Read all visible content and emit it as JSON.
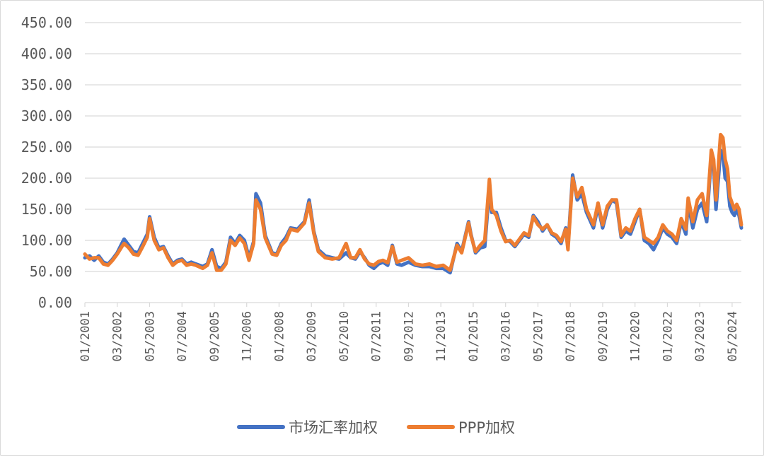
{
  "chart_data": {
    "type": "line",
    "title": "",
    "xlabel": "",
    "ylabel": "",
    "ylim": [
      0,
      450
    ],
    "yticks": [
      "0.00",
      "50.00",
      "100.00",
      "150.00",
      "200.00",
      "250.00",
      "300.00",
      "350.00",
      "400.00",
      "450.00"
    ],
    "xticks": [
      "01/2001",
      "03/2002",
      "05/2003",
      "07/2004",
      "09/2005",
      "11/2006",
      "01/2008",
      "03/2009",
      "05/2010",
      "07/2011",
      "09/2012",
      "11/2013",
      "01/2015",
      "03/2016",
      "05/2017",
      "07/2018",
      "09/2019",
      "11/2020",
      "01/2022",
      "03/2023",
      "05/2024"
    ],
    "grid": true,
    "legend": "bottom",
    "x_start": "01/2001",
    "x_end": "09/2024",
    "colors": {
      "market": "#4472C4",
      "ppp": "#ED7D31",
      "grid": "#d9d9d9",
      "text": "#595959"
    },
    "series": [
      {
        "name": "市场汇率加权",
        "color": "#4472C4",
        "points": [
          [
            "01/2001",
            72
          ],
          [
            "03/2001",
            75
          ],
          [
            "05/2001",
            68
          ],
          [
            "07/2001",
            75
          ],
          [
            "09/2001",
            65
          ],
          [
            "11/2001",
            62
          ],
          [
            "01/2002",
            70
          ],
          [
            "03/2002",
            80
          ],
          [
            "05/2002",
            95
          ],
          [
            "06/2002",
            102
          ],
          [
            "08/2002",
            92
          ],
          [
            "10/2002",
            82
          ],
          [
            "12/2002",
            80
          ],
          [
            "02/2003",
            95
          ],
          [
            "04/2003",
            110
          ],
          [
            "05/2003",
            138
          ],
          [
            "07/2003",
            105
          ],
          [
            "09/2003",
            88
          ],
          [
            "11/2003",
            90
          ],
          [
            "01/2004",
            75
          ],
          [
            "03/2004",
            62
          ],
          [
            "05/2004",
            68
          ],
          [
            "07/2004",
            70
          ],
          [
            "09/2004",
            62
          ],
          [
            "11/2004",
            65
          ],
          [
            "01/2005",
            62
          ],
          [
            "04/2005",
            58
          ],
          [
            "06/2005",
            62
          ],
          [
            "08/2005",
            85
          ],
          [
            "10/2005",
            58
          ],
          [
            "12/2005",
            55
          ],
          [
            "02/2006",
            65
          ],
          [
            "04/2006",
            105
          ],
          [
            "06/2006",
            95
          ],
          [
            "08/2006",
            108
          ],
          [
            "10/2006",
            100
          ],
          [
            "12/2006",
            72
          ],
          [
            "02/2007",
            98
          ],
          [
            "03/2007",
            175
          ],
          [
            "05/2007",
            160
          ],
          [
            "07/2007",
            108
          ],
          [
            "10/2007",
            80
          ],
          [
            "12/2007",
            78
          ],
          [
            "02/2008",
            95
          ],
          [
            "04/2008",
            105
          ],
          [
            "06/2008",
            120
          ],
          [
            "09/2008",
            118
          ],
          [
            "12/2008",
            130
          ],
          [
            "02/2009",
            165
          ],
          [
            "04/2009",
            115
          ],
          [
            "06/2009",
            85
          ],
          [
            "09/2009",
            75
          ],
          [
            "12/2009",
            72
          ],
          [
            "03/2010",
            70
          ],
          [
            "06/2010",
            80
          ],
          [
            "08/2010",
            72
          ],
          [
            "10/2010",
            70
          ],
          [
            "12/2010",
            82
          ],
          [
            "02/2011",
            72
          ],
          [
            "04/2011",
            60
          ],
          [
            "06/2011",
            55
          ],
          [
            "08/2011",
            62
          ],
          [
            "10/2011",
            65
          ],
          [
            "12/2011",
            60
          ],
          [
            "02/2012",
            92
          ],
          [
            "04/2012",
            62
          ],
          [
            "06/2012",
            60
          ],
          [
            "09/2012",
            65
          ],
          [
            "12/2012",
            60
          ],
          [
            "03/2013",
            58
          ],
          [
            "06/2013",
            58
          ],
          [
            "09/2013",
            55
          ],
          [
            "12/2013",
            55
          ],
          [
            "03/2014",
            48
          ],
          [
            "06/2014",
            95
          ],
          [
            "08/2014",
            82
          ],
          [
            "11/2014",
            130
          ],
          [
            "12/2014",
            110
          ],
          [
            "02/2015",
            80
          ],
          [
            "04/2015",
            88
          ],
          [
            "06/2015",
            90
          ],
          [
            "08/2015",
            185
          ],
          [
            "09/2015",
            145
          ],
          [
            "11/2015",
            145
          ],
          [
            "01/2016",
            120
          ],
          [
            "03/2016",
            100
          ],
          [
            "05/2016",
            98
          ],
          [
            "07/2016",
            90
          ],
          [
            "09/2016",
            100
          ],
          [
            "11/2016",
            110
          ],
          [
            "01/2017",
            105
          ],
          [
            "03/2017",
            140
          ],
          [
            "05/2017",
            130
          ],
          [
            "07/2017",
            115
          ],
          [
            "09/2017",
            125
          ],
          [
            "11/2017",
            110
          ],
          [
            "01/2018",
            105
          ],
          [
            "03/2018",
            95
          ],
          [
            "05/2018",
            120
          ],
          [
            "06/2018",
            90
          ],
          [
            "08/2018",
            205
          ],
          [
            "10/2018",
            165
          ],
          [
            "12/2018",
            175
          ],
          [
            "02/2019",
            145
          ],
          [
            "05/2019",
            120
          ],
          [
            "07/2019",
            155
          ],
          [
            "09/2019",
            120
          ],
          [
            "11/2019",
            150
          ],
          [
            "01/2020",
            165
          ],
          [
            "03/2020",
            160
          ],
          [
            "05/2020",
            105
          ],
          [
            "07/2020",
            115
          ],
          [
            "09/2020",
            110
          ],
          [
            "11/2020",
            130
          ],
          [
            "01/2021",
            150
          ],
          [
            "03/2021",
            100
          ],
          [
            "05/2021",
            95
          ],
          [
            "07/2021",
            85
          ],
          [
            "09/2021",
            100
          ],
          [
            "11/2021",
            120
          ],
          [
            "01/2022",
            110
          ],
          [
            "03/2022",
            105
          ],
          [
            "05/2022",
            95
          ],
          [
            "07/2022",
            130
          ],
          [
            "09/2022",
            110
          ],
          [
            "10/2022",
            160
          ],
          [
            "12/2022",
            120
          ],
          [
            "02/2023",
            150
          ],
          [
            "04/2023",
            160
          ],
          [
            "06/2023",
            130
          ],
          [
            "08/2023",
            235
          ],
          [
            "09/2023",
            220
          ],
          [
            "10/2023",
            150
          ],
          [
            "12/2023",
            245
          ],
          [
            "01/2024",
            240
          ],
          [
            "02/2024",
            200
          ],
          [
            "03/2024",
            195
          ],
          [
            "04/2024",
            155
          ],
          [
            "05/2024",
            145
          ],
          [
            "06/2024",
            140
          ],
          [
            "07/2024",
            150
          ],
          [
            "08/2024",
            140
          ],
          [
            "09/2024",
            120
          ]
        ]
      },
      {
        "name": "PPP加权",
        "color": "#ED7D31",
        "points": [
          [
            "01/2001",
            78
          ],
          [
            "03/2001",
            70
          ],
          [
            "05/2001",
            72
          ],
          [
            "07/2001",
            72
          ],
          [
            "09/2001",
            62
          ],
          [
            "11/2001",
            60
          ],
          [
            "01/2002",
            68
          ],
          [
            "03/2002",
            78
          ],
          [
            "05/2002",
            90
          ],
          [
            "06/2002",
            95
          ],
          [
            "08/2002",
            88
          ],
          [
            "10/2002",
            78
          ],
          [
            "12/2002",
            76
          ],
          [
            "02/2003",
            90
          ],
          [
            "04/2003",
            105
          ],
          [
            "05/2003",
            135
          ],
          [
            "07/2003",
            100
          ],
          [
            "09/2003",
            85
          ],
          [
            "11/2003",
            88
          ],
          [
            "01/2004",
            72
          ],
          [
            "03/2004",
            60
          ],
          [
            "05/2004",
            66
          ],
          [
            "07/2004",
            68
          ],
          [
            "09/2004",
            60
          ],
          [
            "11/2004",
            62
          ],
          [
            "01/2005",
            60
          ],
          [
            "04/2005",
            55
          ],
          [
            "06/2005",
            60
          ],
          [
            "08/2005",
            80
          ],
          [
            "10/2005",
            52
          ],
          [
            "12/2005",
            52
          ],
          [
            "02/2006",
            62
          ],
          [
            "04/2006",
            100
          ],
          [
            "06/2006",
            92
          ],
          [
            "08/2006",
            104
          ],
          [
            "10/2006",
            95
          ],
          [
            "12/2006",
            68
          ],
          [
            "02/2007",
            95
          ],
          [
            "03/2007",
            165
          ],
          [
            "05/2007",
            150
          ],
          [
            "07/2007",
            104
          ],
          [
            "10/2007",
            78
          ],
          [
            "12/2007",
            76
          ],
          [
            "02/2008",
            92
          ],
          [
            "04/2008",
            100
          ],
          [
            "06/2008",
            118
          ],
          [
            "09/2008",
            115
          ],
          [
            "12/2008",
            128
          ],
          [
            "02/2009",
            160
          ],
          [
            "04/2009",
            112
          ],
          [
            "06/2009",
            82
          ],
          [
            "09/2009",
            72
          ],
          [
            "12/2009",
            70
          ],
          [
            "03/2010",
            72
          ],
          [
            "06/2010",
            95
          ],
          [
            "08/2010",
            72
          ],
          [
            "10/2010",
            72
          ],
          [
            "12/2010",
            85
          ],
          [
            "02/2011",
            70
          ],
          [
            "04/2011",
            62
          ],
          [
            "06/2011",
            60
          ],
          [
            "08/2011",
            66
          ],
          [
            "10/2011",
            68
          ],
          [
            "12/2011",
            64
          ],
          [
            "02/2012",
            90
          ],
          [
            "04/2012",
            65
          ],
          [
            "06/2012",
            68
          ],
          [
            "09/2012",
            72
          ],
          [
            "12/2012",
            62
          ],
          [
            "03/2013",
            60
          ],
          [
            "06/2013",
            62
          ],
          [
            "09/2013",
            58
          ],
          [
            "12/2013",
            60
          ],
          [
            "03/2014",
            52
          ],
          [
            "06/2014",
            92
          ],
          [
            "08/2014",
            80
          ],
          [
            "11/2014",
            128
          ],
          [
            "12/2014",
            108
          ],
          [
            "02/2015",
            82
          ],
          [
            "04/2015",
            92
          ],
          [
            "06/2015",
            100
          ],
          [
            "08/2015",
            198
          ],
          [
            "09/2015",
            150
          ],
          [
            "11/2015",
            140
          ],
          [
            "01/2016",
            115
          ],
          [
            "03/2016",
            98
          ],
          [
            "05/2016",
            100
          ],
          [
            "07/2016",
            92
          ],
          [
            "09/2016",
            102
          ],
          [
            "11/2016",
            112
          ],
          [
            "01/2017",
            108
          ],
          [
            "03/2017",
            138
          ],
          [
            "05/2017",
            125
          ],
          [
            "07/2017",
            118
          ],
          [
            "09/2017",
            125
          ],
          [
            "11/2017",
            112
          ],
          [
            "01/2018",
            108
          ],
          [
            "03/2018",
            98
          ],
          [
            "05/2018",
            118
          ],
          [
            "06/2018",
            85
          ],
          [
            "08/2018",
            200
          ],
          [
            "10/2018",
            170
          ],
          [
            "12/2018",
            185
          ],
          [
            "02/2019",
            150
          ],
          [
            "05/2019",
            125
          ],
          [
            "07/2019",
            160
          ],
          [
            "09/2019",
            125
          ],
          [
            "11/2019",
            155
          ],
          [
            "01/2020",
            165
          ],
          [
            "03/2020",
            165
          ],
          [
            "05/2020",
            108
          ],
          [
            "07/2020",
            120
          ],
          [
            "09/2020",
            115
          ],
          [
            "11/2020",
            135
          ],
          [
            "01/2021",
            150
          ],
          [
            "03/2021",
            105
          ],
          [
            "05/2021",
            100
          ],
          [
            "07/2021",
            95
          ],
          [
            "09/2021",
            105
          ],
          [
            "11/2021",
            125
          ],
          [
            "01/2022",
            115
          ],
          [
            "03/2022",
            110
          ],
          [
            "05/2022",
            100
          ],
          [
            "07/2022",
            135
          ],
          [
            "09/2022",
            118
          ],
          [
            "10/2022",
            168
          ],
          [
            "12/2022",
            130
          ],
          [
            "02/2023",
            165
          ],
          [
            "04/2023",
            175
          ],
          [
            "06/2023",
            140
          ],
          [
            "08/2023",
            245
          ],
          [
            "09/2023",
            230
          ],
          [
            "10/2023",
            165
          ],
          [
            "12/2023",
            270
          ],
          [
            "01/2024",
            265
          ],
          [
            "02/2024",
            230
          ],
          [
            "03/2024",
            215
          ],
          [
            "04/2024",
            170
          ],
          [
            "05/2024",
            160
          ],
          [
            "06/2024",
            150
          ],
          [
            "07/2024",
            158
          ],
          [
            "08/2024",
            150
          ],
          [
            "09/2024",
            125
          ]
        ]
      }
    ]
  }
}
